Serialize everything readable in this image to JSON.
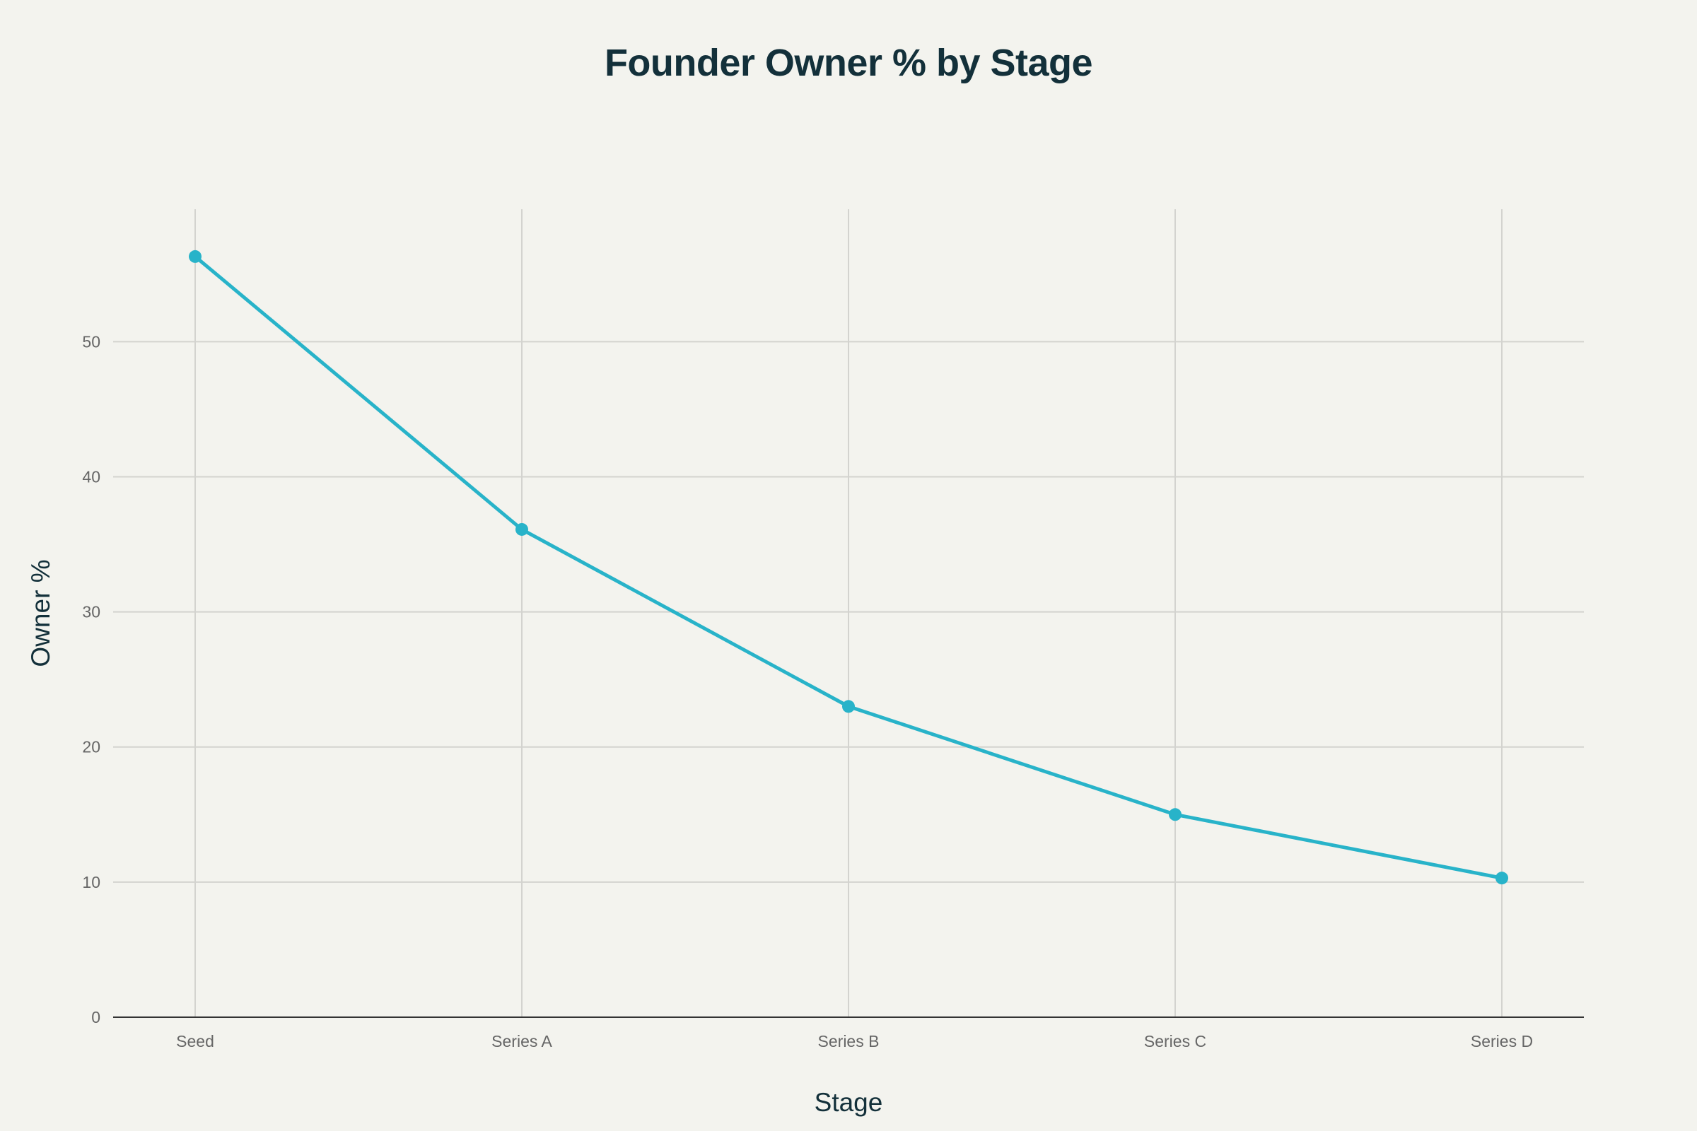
{
  "chart_data": {
    "type": "line",
    "title": "Founder Owner % by Stage",
    "xlabel": "Stage",
    "ylabel": "Owner %",
    "categories": [
      "Seed",
      "Series A",
      "Series B",
      "Series C",
      "Series D"
    ],
    "series": [
      {
        "values": [
          56.3,
          36.1,
          23.0,
          15.0,
          10.3
        ],
        "color": "#28b3c9"
      }
    ],
    "ylim": [
      0,
      59.8
    ],
    "yticks": [
      0,
      10,
      20,
      30,
      40,
      50
    ],
    "grid": true,
    "legend": "none",
    "colors": {
      "background": "#f3f3ee",
      "grid": "#d3d3cf",
      "axis": "#333333",
      "title": "#13303a",
      "tick": "#666666"
    }
  }
}
